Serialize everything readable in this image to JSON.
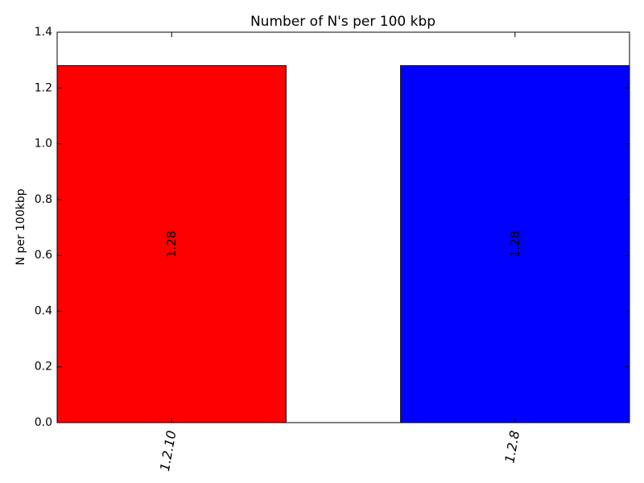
{
  "chart_data": {
    "type": "bar",
    "title": "Number of N's per 100 kbp",
    "xlabel": "",
    "ylabel": "N per 100kbp",
    "ylim": [
      0,
      1.4
    ],
    "yticks": [
      "0.0",
      "0.2",
      "0.4",
      "0.6",
      "0.8",
      "1.0",
      "1.2",
      "1.4"
    ],
    "ytick_values": [
      0,
      0.2,
      0.4,
      0.6,
      0.8,
      1.0,
      1.2,
      1.4
    ],
    "categories": [
      "1.2.10",
      "1.2.8"
    ],
    "values": [
      1.28,
      1.28
    ],
    "data_labels": [
      "1.28",
      "1.28"
    ],
    "colors": [
      "#ff0000",
      "#0000ff"
    ],
    "grid": false,
    "legend": "none"
  }
}
